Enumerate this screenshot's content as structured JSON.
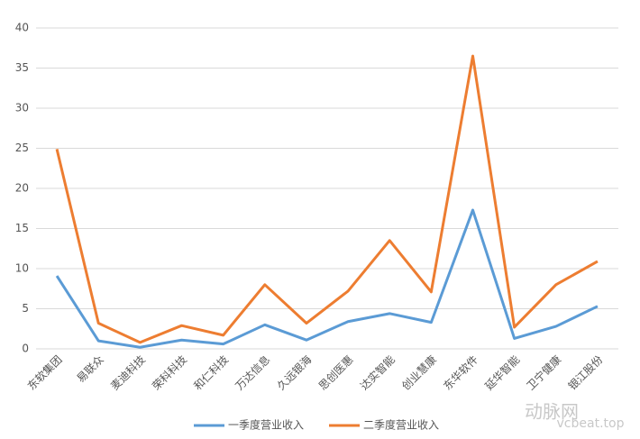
{
  "chart_data": {
    "type": "line",
    "categories": [
      "东软集团",
      "易联众",
      "麦迪科技",
      "荣科科技",
      "和仁科技",
      "万达信息",
      "久远银海",
      "思创医惠",
      "达实智能",
      "创业慧康",
      "东华软件",
      "延华智能",
      "卫宁健康",
      "银江股份"
    ],
    "series": [
      {
        "name": "一季度营业收入",
        "color": "#5b9bd5",
        "values": [
          9.1,
          1.0,
          0.2,
          1.1,
          0.6,
          3.0,
          1.1,
          3.4,
          4.4,
          3.3,
          17.3,
          1.3,
          2.8,
          5.3
        ]
      },
      {
        "name": "二季度营业收入",
        "color": "#ed7d31",
        "values": [
          24.9,
          3.2,
          0.8,
          2.9,
          1.7,
          8.0,
          3.2,
          7.2,
          13.5,
          7.1,
          36.5,
          2.7,
          8.0,
          10.9
        ]
      }
    ],
    "ylim": [
      0,
      40
    ],
    "yticks": [
      0,
      5,
      10,
      15,
      20,
      25,
      30,
      35,
      40
    ],
    "grid": true,
    "legend": "bottom",
    "watermark": [
      "动脉网",
      "vcbeat.top"
    ]
  }
}
